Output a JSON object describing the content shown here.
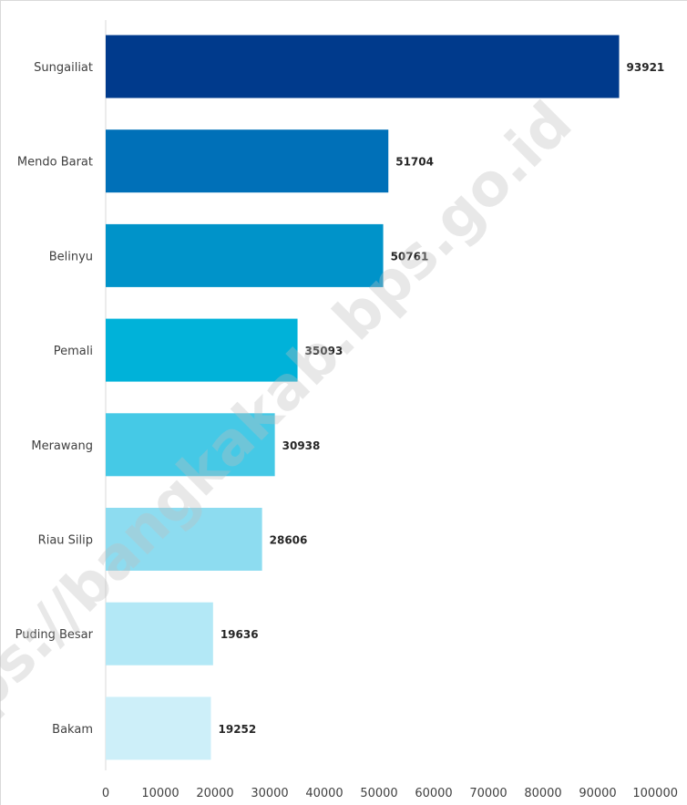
{
  "chart_data": {
    "type": "bar",
    "orientation": "horizontal",
    "categories": [
      "Sungailiat",
      "Mendo Barat",
      "Belinyu",
      "Pemali",
      "Merawang",
      "Riau Silip",
      "Puding Besar",
      "Bakam"
    ],
    "values": [
      93921,
      51704,
      50761,
      35093,
      30938,
      28606,
      19636,
      19252
    ],
    "value_labels": [
      "93921",
      "51704",
      "50761",
      "35093",
      "30938",
      "28606",
      "19636",
      "19252"
    ],
    "bar_colors": [
      "#003a8c",
      "#0070b8",
      "#0093c9",
      "#00b2d9",
      "#45c9e6",
      "#8ddcf0",
      "#b3e8f6",
      "#cdeff9"
    ],
    "xlim": [
      0,
      100000
    ],
    "xticks": [
      0,
      10000,
      20000,
      30000,
      40000,
      50000,
      60000,
      70000,
      80000,
      90000,
      100000
    ],
    "xtick_labels": [
      "0",
      "10000",
      "20000",
      "30000",
      "40000",
      "50000",
      "60000",
      "70000",
      "80000",
      "90000",
      "100000"
    ],
    "grid": false,
    "watermark": "https://bangkakab.bps.go.id"
  }
}
